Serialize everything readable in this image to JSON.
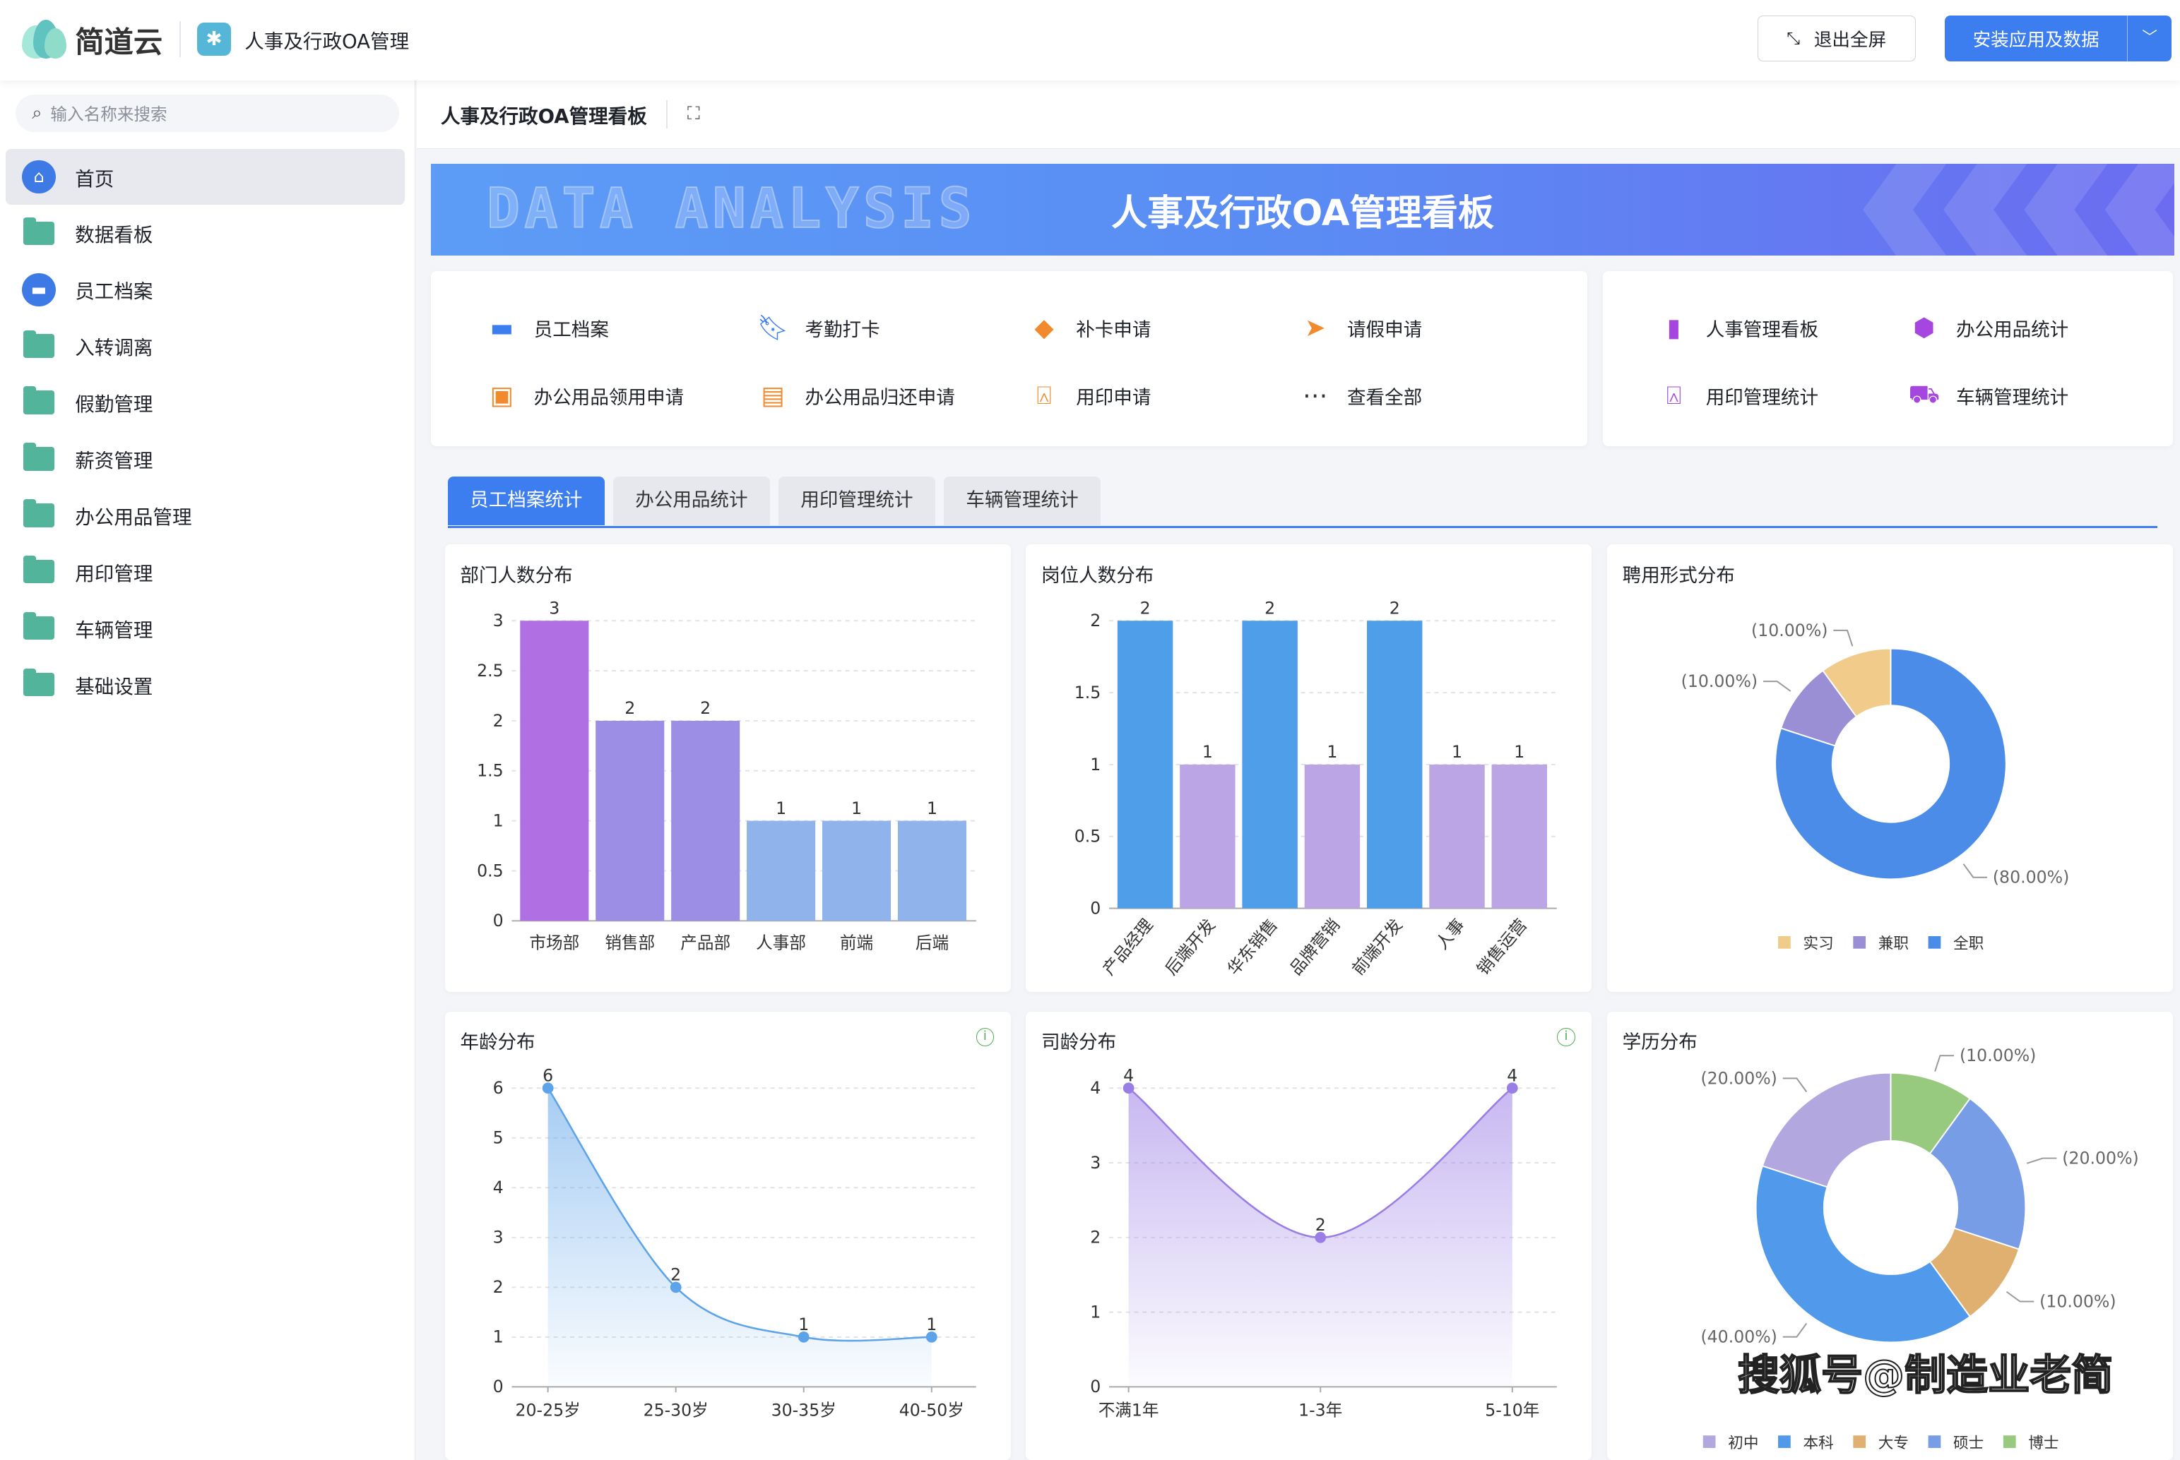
{
  "header": {
    "brand": "简道云",
    "app_name": "人事及行政OA管理",
    "exit_fullscreen": "退出全屏",
    "install": "安装应用及数据"
  },
  "sidebar": {
    "search_placeholder": "输入名称来搜索",
    "items": [
      {
        "label": "首页",
        "icon": "home-icon",
        "active": true
      },
      {
        "label": "数据看板",
        "icon": "folder-icon"
      },
      {
        "label": "员工档案",
        "icon": "card-icon"
      },
      {
        "label": "入转调离",
        "icon": "folder-icon"
      },
      {
        "label": "假勤管理",
        "icon": "folder-icon"
      },
      {
        "label": "薪资管理",
        "icon": "folder-icon"
      },
      {
        "label": "办公用品管理",
        "icon": "folder-icon"
      },
      {
        "label": "用印管理",
        "icon": "folder-icon"
      },
      {
        "label": "车辆管理",
        "icon": "folder-icon"
      },
      {
        "label": "基础设置",
        "icon": "folder-icon"
      }
    ]
  },
  "page": {
    "title": "人事及行政OA管理看板"
  },
  "banner": {
    "title": "人事及行政OA管理看板",
    "watermark": "DATA ANALYSIS"
  },
  "shortcuts_left": [
    {
      "label": "员工档案",
      "icon": "id-card-icon",
      "color": "#3c7ef0"
    },
    {
      "label": "考勤打卡",
      "icon": "bookmark-icon",
      "color": "#3c7ef0"
    },
    {
      "label": "补卡申请",
      "icon": "tag-icon",
      "color": "#f08a2c"
    },
    {
      "label": "请假申请",
      "icon": "send-icon",
      "color": "#f08a2c"
    },
    {
      "label": "办公用品领用申请",
      "icon": "box-icon",
      "color": "#f08a2c"
    },
    {
      "label": "办公用品归还申请",
      "icon": "tray-icon",
      "color": "#f08a2c"
    },
    {
      "label": "用印申请",
      "icon": "stamp-icon",
      "color": "#f08a2c"
    },
    {
      "label": "查看全部",
      "icon": "more-icon",
      "color": "#333333"
    }
  ],
  "shortcuts_right": [
    {
      "label": "人事管理看板",
      "icon": "bar-chart-icon",
      "color": "#a546e0"
    },
    {
      "label": "办公用品统计",
      "icon": "cube-icon",
      "color": "#a546e0"
    },
    {
      "label": "用印管理统计",
      "icon": "stamp-icon",
      "color": "#a546e0"
    },
    {
      "label": "车辆管理统计",
      "icon": "truck-icon",
      "color": "#a546e0"
    }
  ],
  "tabs": [
    {
      "label": "员工档案统计",
      "active": true
    },
    {
      "label": "办公用品统计"
    },
    {
      "label": "用印管理统计"
    },
    {
      "label": "车辆管理统计"
    }
  ],
  "chart_data": [
    {
      "id": "dept",
      "type": "bar",
      "title": "部门人数分布",
      "categories": [
        "市场部",
        "销售部",
        "产品部",
        "人事部",
        "前端",
        "后端"
      ],
      "values": [
        3,
        2,
        2,
        1,
        1,
        1
      ],
      "ylim": [
        0,
        3
      ],
      "yticks": [
        0,
        0.5,
        1,
        1.5,
        2,
        2.5,
        3
      ],
      "colors": [
        "#b06fe2",
        "#9d8ee5",
        "#9d8ee5",
        "#8fb3ea",
        "#8fb3ea",
        "#8fb3ea"
      ],
      "grid": true
    },
    {
      "id": "post",
      "type": "bar",
      "title": "岗位人数分布",
      "categories": [
        "产品经理",
        "后端开发",
        "华东销售",
        "品牌营销",
        "前端开发",
        "人事",
        "销售运营"
      ],
      "values": [
        2,
        1,
        2,
        1,
        2,
        1,
        1
      ],
      "ylim": [
        0,
        2
      ],
      "yticks": [
        0,
        0.5,
        1,
        1.5,
        2
      ],
      "colors": [
        "#4f9ee9",
        "#bca5e4",
        "#4f9ee9",
        "#bca5e4",
        "#4f9ee9",
        "#bca5e4",
        "#bca5e4"
      ],
      "grid": true
    },
    {
      "id": "emp",
      "type": "pie",
      "title": "聘用形式分布",
      "slices": [
        {
          "name": "全职",
          "value": 80,
          "label": "(80.00%)",
          "color": "#4a8ce8"
        },
        {
          "name": "兼职",
          "value": 10,
          "label": "(10.00%)",
          "color": "#9a8ed4"
        },
        {
          "name": "实习",
          "value": 10,
          "label": "(10.00%)",
          "color": "#f0cb8a"
        }
      ],
      "legend": [
        "实习",
        "兼职",
        "全职"
      ],
      "legend_position": "bottom"
    },
    {
      "id": "age",
      "type": "area",
      "title": "年龄分布",
      "categories": [
        "20-25岁",
        "25-30岁",
        "30-35岁",
        "40-50岁"
      ],
      "values": [
        6,
        2,
        1,
        1
      ],
      "ylim": [
        0,
        6
      ],
      "yticks": [
        0,
        1,
        2,
        3,
        4,
        5,
        6
      ],
      "color": "#5da3ea",
      "grid": true
    },
    {
      "id": "tenure",
      "type": "area",
      "title": "司龄分布",
      "categories": [
        "不满1年",
        "1-3年",
        "5-10年"
      ],
      "values": [
        4,
        2,
        4
      ],
      "ylim": [
        0,
        4
      ],
      "yticks": [
        0,
        1,
        2,
        3,
        4
      ],
      "color": "#9a7ee6",
      "grid": true
    },
    {
      "id": "edu",
      "type": "pie",
      "title": "学历分布",
      "slices": [
        {
          "name": "博士",
          "value": 10,
          "label": "(10.00%)",
          "color": "#97c97f"
        },
        {
          "name": "硕士",
          "value": 20,
          "label": "(20.00%)",
          "color": "#769de6"
        },
        {
          "name": "大专",
          "value": 10,
          "label": "(10.00%)",
          "color": "#e0b070"
        },
        {
          "name": "本科",
          "value": 40,
          "label": "(40.00%)",
          "color": "#5199ea"
        },
        {
          "name": "初中",
          "value": 20,
          "label": "(20.00%)",
          "color": "#b3a7e0"
        }
      ],
      "legend": [
        "初中",
        "本科",
        "大专",
        "硕士",
        "博士"
      ],
      "legend_position": "bottom"
    }
  ],
  "watermark_overlay": "搜狐号@制造业老简"
}
